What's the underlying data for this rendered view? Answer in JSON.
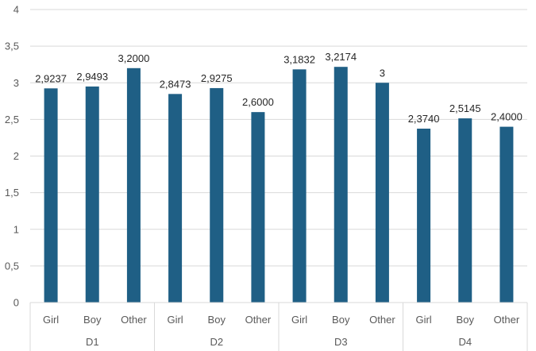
{
  "chart_data": {
    "type": "bar",
    "title": "",
    "xlabel": "",
    "ylabel": "",
    "ylim": [
      0,
      4
    ],
    "y_ticks": [
      "0",
      "0,5",
      "1",
      "1,5",
      "2",
      "2,5",
      "3",
      "3,5",
      "4"
    ],
    "grid": true,
    "bar_color": "#1f5f85",
    "gridline_color": "#d9d9d9",
    "groups": [
      {
        "name": "D1",
        "categories": [
          "Girl",
          "Boy",
          "Other"
        ],
        "values": [
          2.9237,
          2.9493,
          3.2
        ],
        "labels": [
          "2,9237",
          "2,9493",
          "3,2000"
        ]
      },
      {
        "name": "D2",
        "categories": [
          "Girl",
          "Boy",
          "Other"
        ],
        "values": [
          2.8473,
          2.9275,
          2.6
        ],
        "labels": [
          "2,8473",
          "2,9275",
          "2,6000"
        ]
      },
      {
        "name": "D3",
        "categories": [
          "Girl",
          "Boy",
          "Other"
        ],
        "values": [
          3.1832,
          3.2174,
          3
        ],
        "labels": [
          "3,1832",
          "3,2174",
          "3"
        ]
      },
      {
        "name": "D4",
        "categories": [
          "Girl",
          "Boy",
          "Other"
        ],
        "values": [
          2.374,
          2.5145,
          2.4
        ],
        "labels": [
          "2,3740",
          "2,5145",
          "2,4000"
        ]
      }
    ]
  }
}
